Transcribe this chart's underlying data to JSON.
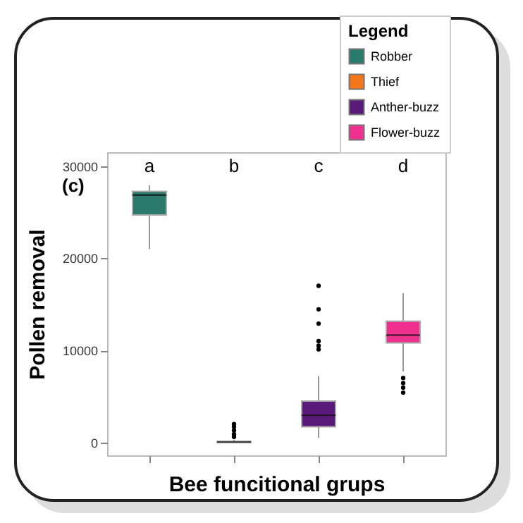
{
  "chart_data": {
    "type": "box",
    "xlabel": "Bee funcitional grups",
    "ylabel": "Pollen removal",
    "legend_title": "Legend",
    "legend": "top right",
    "grid": false,
    "categories": [
      "a",
      "b",
      "c",
      "d"
    ],
    "ylim": [
      -1400,
      31500
    ],
    "yticks": [
      0,
      10000,
      20000,
      30000
    ],
    "annotations": [
      "(c)"
    ],
    "series": [
      {
        "name": "Robber",
        "color": "#2a7a6b",
        "boxes": [
          {
            "low": 21000,
            "q1": 24700,
            "median": 26850,
            "q3": 27250,
            "high": 27900
          },
          null,
          null,
          null
        ]
      },
      {
        "name": "Thief",
        "color": "#f5761a",
        "boxes": [
          null,
          {
            "low": 0,
            "q1": 0,
            "median": 50,
            "q3": 100,
            "high": 300,
            "outliers": [
              600,
              900,
              1300,
              1700,
              2000
            ]
          },
          null,
          null
        ]
      },
      {
        "name": "Anther-buzz",
        "color": "#5a1a7a",
        "boxes": [
          null,
          null,
          {
            "low": 500,
            "q1": 1700,
            "median": 2950,
            "q3": 4500,
            "high": 7200,
            "outliers": [
              10100,
              10500,
              11000,
              12900,
              14450,
              17000
            ]
          },
          null
        ]
      },
      {
        "name": "Flower-buzz",
        "color": "#f0308f",
        "boxes": [
          null,
          null,
          null,
          {
            "low": 7700,
            "q1": 10800,
            "median": 11650,
            "q3": 13150,
            "high": 16200,
            "outliers": [
              5400,
              5950,
              6450,
              7000
            ]
          }
        ]
      }
    ]
  }
}
